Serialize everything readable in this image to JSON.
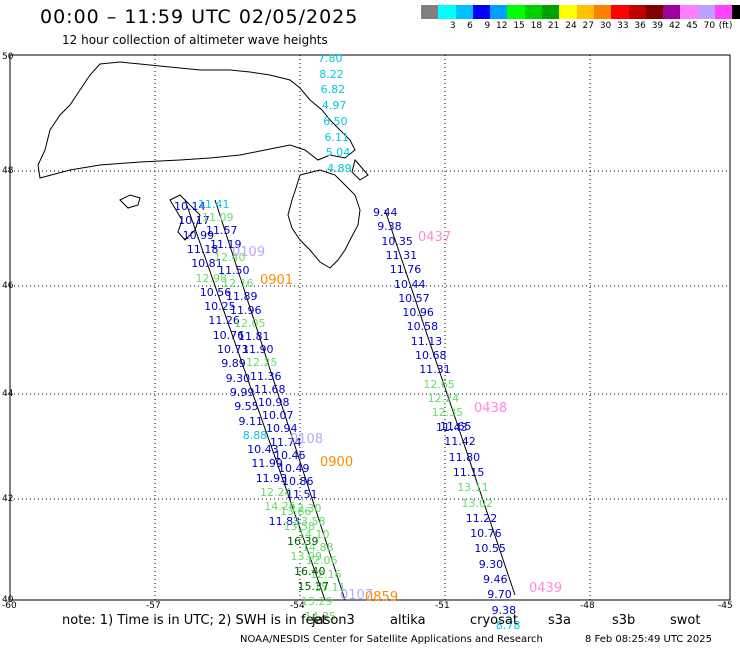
{
  "header": {
    "title": "00:00 – 11:59 UTC 02/05/2025",
    "subtitle": "12 hour collection of altimeter wave heights"
  },
  "color_scale": {
    "unit": "(ft)",
    "colors": [
      "#808080",
      "#00ffff",
      "#00c0ff",
      "#0000ff",
      "#00a0ff",
      "#00ff00",
      "#00d000",
      "#00a000",
      "#ffff00",
      "#ffc000",
      "#ff8000",
      "#ff0000",
      "#c00000",
      "#800000",
      "#a000a0",
      "#ff80ff",
      "#c0a0ff",
      "#ff40ff",
      "#000000"
    ],
    "labels": [
      "",
      "3",
      "6",
      "9",
      "12",
      "15",
      "18",
      "21",
      "24",
      "27",
      "30",
      "33",
      "36",
      "39",
      "42",
      "45",
      "70",
      "(ft)"
    ]
  },
  "axes": {
    "y_labels": [
      "50",
      "48",
      "46",
      "44",
      "42",
      "40"
    ],
    "x_labels": [
      "-60",
      "-57",
      "-54",
      "-51",
      "-48",
      "-45"
    ]
  },
  "tracks": [
    {
      "id": "jason",
      "labels": [
        {
          "text": "7.80",
          "c": "#00c8e0"
        },
        {
          "text": "8.22",
          "c": "#00c8e0"
        },
        {
          "text": "6.82",
          "c": "#00c8e0"
        },
        {
          "text": "4.97",
          "c": "#00c8e0"
        },
        {
          "text": "6.50",
          "c": "#00c8e0"
        },
        {
          "text": "6.11",
          "c": "#00c8e0"
        },
        {
          "text": "5.04",
          "c": "#00c8e0"
        },
        {
          "text": "4.89",
          "c": "#00c8e0"
        }
      ]
    },
    {
      "id": "track-0437",
      "time": "0437",
      "labels": [
        {
          "text": "9.44",
          "c": "#0000c8"
        },
        {
          "text": "9.38",
          "c": "#0000c8"
        },
        {
          "text": "10.35",
          "c": "#0000c8"
        },
        {
          "text": "11.31",
          "c": "#0000c8"
        },
        {
          "text": "11.76",
          "c": "#0000c8"
        },
        {
          "text": "10.44",
          "c": "#0000c8"
        },
        {
          "text": "10.57",
          "c": "#0000c8"
        },
        {
          "text": "10.96",
          "c": "#0000c8"
        },
        {
          "text": "10.58",
          "c": "#0000c8"
        },
        {
          "text": "11.13",
          "c": "#0000c8"
        },
        {
          "text": "10.68",
          "c": "#0000c8"
        },
        {
          "text": "11.31",
          "c": "#0000c8"
        },
        {
          "text": "12.65",
          "c": "#66dd66"
        },
        {
          "text": "12.24",
          "c": "#66dd66"
        },
        {
          "text": "12.35",
          "c": "#66dd66"
        },
        {
          "text": "11.43",
          "c": "#0000c8"
        }
      ]
    },
    {
      "id": "track-0438",
      "time": "0438",
      "labels": [
        {
          "text": "11.65",
          "c": "#0000c8"
        },
        {
          "text": "11.42",
          "c": "#0000c8"
        },
        {
          "text": "11.80",
          "c": "#0000c8"
        },
        {
          "text": "11.15",
          "c": "#0000c8"
        },
        {
          "text": "13.11",
          "c": "#66dd66"
        },
        {
          "text": "13.02",
          "c": "#66dd66"
        },
        {
          "text": "11.22",
          "c": "#0000c8"
        },
        {
          "text": "10.76",
          "c": "#0000c8"
        },
        {
          "text": "10.55",
          "c": "#0000c8"
        },
        {
          "text": "9.30",
          "c": "#0000c8"
        },
        {
          "text": "9.46",
          "c": "#0000c8"
        },
        {
          "text": "9.70",
          "c": "#0000c8"
        },
        {
          "text": "9.38",
          "c": "#0000c8"
        },
        {
          "text": "8.78",
          "c": "#00c8e0"
        }
      ]
    },
    {
      "id": "track-left-a",
      "labels": [
        {
          "text": "10.14",
          "c": "#0000c8"
        },
        {
          "text": "10.17",
          "c": "#0000c8"
        },
        {
          "text": "10.99",
          "c": "#0000c8"
        },
        {
          "text": "11.18",
          "c": "#0000c8"
        },
        {
          "text": "10.81",
          "c": "#0000c8"
        },
        {
          "text": "12.98",
          "c": "#66dd66"
        },
        {
          "text": "10.56",
          "c": "#0000c8"
        },
        {
          "text": "10.25",
          "c": "#0000c8"
        },
        {
          "text": "11.26",
          "c": "#0000c8"
        },
        {
          "text": "10.76",
          "c": "#0000c8"
        },
        {
          "text": "10.73",
          "c": "#0000c8"
        },
        {
          "text": "9.89",
          "c": "#0000c8"
        },
        {
          "text": "9.30",
          "c": "#0000c8"
        },
        {
          "text": "9.99",
          "c": "#0000c8"
        },
        {
          "text": "9.55",
          "c": "#0000c8"
        },
        {
          "text": "9.11",
          "c": "#0000c8"
        },
        {
          "text": "8.88",
          "c": "#00c8e0"
        },
        {
          "text": "10.43",
          "c": "#0000c8"
        },
        {
          "text": "11.99",
          "c": "#0000c8"
        },
        {
          "text": "11.93",
          "c": "#0000c8"
        },
        {
          "text": "12.24",
          "c": "#66dd66"
        },
        {
          "text": "14.26",
          "c": "#66dd66"
        },
        {
          "text": "11.83",
          "c": "#0000c8"
        }
      ]
    },
    {
      "id": "track-left-b",
      "labels": [
        {
          "text": "11.41",
          "c": "#00c8e0"
        },
        {
          "text": "11.09",
          "c": "#66dd66"
        },
        {
          "text": "11.57",
          "c": "#0000c8"
        },
        {
          "text": "11.19",
          "c": "#0000c8"
        },
        {
          "text": "12.40",
          "c": "#66dd66"
        },
        {
          "text": "11.50",
          "c": "#0000c8"
        },
        {
          "text": "12.16",
          "c": "#66dd66"
        },
        {
          "text": "11.89",
          "c": "#0000c8"
        },
        {
          "text": "11.96",
          "c": "#0000c8"
        },
        {
          "text": "12.05",
          "c": "#66dd66"
        },
        {
          "text": "11.81",
          "c": "#0000c8"
        },
        {
          "text": "11.90",
          "c": "#0000c8"
        },
        {
          "text": "12.25",
          "c": "#66dd66"
        },
        {
          "text": "11.36",
          "c": "#0000c8"
        },
        {
          "text": "11.68",
          "c": "#0000c8"
        },
        {
          "text": "10.98",
          "c": "#0000c8"
        },
        {
          "text": "10.07",
          "c": "#0000c8"
        },
        {
          "text": "10.94",
          "c": "#0000c8"
        },
        {
          "text": "11.74",
          "c": "#0000c8"
        },
        {
          "text": "10.46",
          "c": "#0000c8"
        },
        {
          "text": "10.49",
          "c": "#0000c8"
        },
        {
          "text": "10.86",
          "c": "#0000c8"
        },
        {
          "text": "11.51",
          "c": "#0000c8"
        },
        {
          "text": "12.30",
          "c": "#66dd66"
        },
        {
          "text": "13.58",
          "c": "#66dd66"
        },
        {
          "text": "14.10",
          "c": "#66dd66"
        },
        {
          "text": "14.88",
          "c": "#66dd66"
        },
        {
          "text": "12.06",
          "c": "#66dd66"
        },
        {
          "text": "12.16",
          "c": "#66dd66"
        },
        {
          "text": "15.11",
          "c": "#66dd66"
        }
      ]
    },
    {
      "id": "track-left-c",
      "labels": [
        {
          "text": "13.86",
          "c": "#66dd66"
        },
        {
          "text": "13.58",
          "c": "#66dd66"
        },
        {
          "text": "16.39",
          "c": "#006400"
        },
        {
          "text": "13.99",
          "c": "#66dd66"
        },
        {
          "text": "16.40",
          "c": "#006400"
        },
        {
          "text": "15.37",
          "c": "#006400"
        },
        {
          "text": "13.29",
          "c": "#66dd66"
        },
        {
          "text": "14.35",
          "c": "#66dd66"
        }
      ]
    }
  ],
  "time_tags": [
    {
      "text": "0437",
      "c": "#ff88dd"
    },
    {
      "text": "0438",
      "c": "#ff88dd"
    },
    {
      "text": "0439",
      "c": "#ff88dd"
    },
    {
      "text": "0901",
      "c": "#ff8c00"
    },
    {
      "text": "0900",
      "c": "#ff8c00"
    },
    {
      "text": "0859",
      "c": "#ff8c00"
    },
    {
      "text": "0109",
      "c": "#b8a8ff"
    },
    {
      "text": "0108",
      "c": "#b8a8ff"
    },
    {
      "text": "0107",
      "c": "#b8a8ff"
    }
  ],
  "footer": {
    "note": "note: 1) Time is in UTC; 2) SWH is in feet",
    "satellites": [
      {
        "name": "jason3",
        "c": "#006400"
      },
      {
        "name": "altika",
        "c": "#ff8c00"
      },
      {
        "name": "cryosat",
        "c": "#ff0000"
      },
      {
        "name": "s3a",
        "c": "#b00000"
      },
      {
        "name": "s3b",
        "c": "#c0a0ff"
      },
      {
        "name": "swot",
        "c": "#ff88dd"
      }
    ],
    "credit": "NOAA/NESDIS Center for Satellite Applications and Research",
    "timestamp": "8 Feb 08:25:49 UTC 2025"
  }
}
